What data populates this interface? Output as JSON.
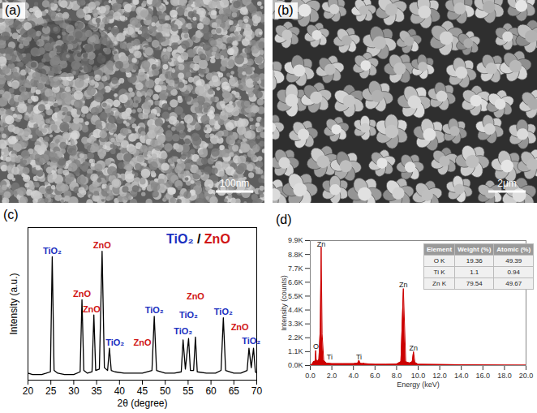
{
  "images": [
    {
      "label": "(a)",
      "scale_bar": "100nm"
    },
    {
      "label": "(b)",
      "scale_bar": "2μm"
    }
  ],
  "chart_data": [
    {
      "label": "(c)",
      "type": "line",
      "title": "TiO₂ / ZnO",
      "x_label": "2θ (degree)",
      "y_label": "Intensity (a.u.)",
      "x": [
        20,
        21,
        22,
        23,
        24,
        24.9,
        25.3,
        25.7,
        26.5,
        28,
        30,
        31.4,
        31.8,
        32.2,
        33,
        34.0,
        34.4,
        34.8,
        35.6,
        36.2,
        36.7,
        37.4,
        37.8,
        38.2,
        39,
        41,
        43,
        45,
        47.1,
        47.6,
        48.1,
        50,
        52,
        53.5,
        53.9,
        54.4,
        55.1,
        55.5,
        56.2,
        56.6,
        57.0,
        59,
        61,
        62.2,
        62.7,
        63.2,
        65,
        66.5,
        67.9,
        68.3,
        68.8,
        69.3,
        69.7,
        70
      ],
      "values": [
        5,
        4,
        4,
        4,
        5,
        6,
        89,
        7,
        5,
        4,
        4,
        6,
        58,
        7,
        5,
        6,
        47,
        7,
        8,
        93,
        9,
        7,
        23,
        7,
        6,
        5,
        5,
        5,
        7,
        46,
        7,
        5,
        5,
        6,
        29,
        8,
        30,
        7,
        7,
        31,
        6,
        5,
        5,
        7,
        45,
        7,
        5,
        5,
        7,
        23,
        9,
        23,
        6,
        5
      ],
      "color": "#000000",
      "xlim": [
        20,
        70
      ],
      "xticks": [
        20,
        25,
        30,
        35,
        40,
        45,
        50,
        55,
        60,
        65,
        70
      ],
      "ylim": [
        0,
        110
      ],
      "tick_labels": "x",
      "annotations": [
        {
          "text": "TiO₂",
          "x": 25.3,
          "y": 91,
          "color": "#1a2fc0"
        },
        {
          "text": "ZnO",
          "x": 31.8,
          "y": 60,
          "color": "#d01515"
        },
        {
          "text": "ZnO",
          "x": 33.9,
          "y": 49,
          "color": "#d01515"
        },
        {
          "text": "ZnO",
          "x": 36.2,
          "y": 95,
          "color": "#d01515"
        },
        {
          "text": "TiO₂",
          "x": 39.0,
          "y": 25,
          "color": "#1a2fc0"
        },
        {
          "text": "ZnO",
          "x": 45.0,
          "y": 25,
          "color": "#d01515"
        },
        {
          "text": "TiO₂",
          "x": 47.6,
          "y": 48,
          "color": "#1a2fc0"
        },
        {
          "text": "TiO₂",
          "x": 53.9,
          "y": 33,
          "color": "#1a2fc0"
        },
        {
          "text": "TiO₂",
          "x": 55.1,
          "y": 45,
          "color": "#1a2fc0"
        },
        {
          "text": "ZnO",
          "x": 56.6,
          "y": 58,
          "color": "#d01515"
        },
        {
          "text": "TiO₂",
          "x": 62.7,
          "y": 47,
          "color": "#1a2fc0"
        },
        {
          "text": "ZnO",
          "x": 66.3,
          "y": 36,
          "color": "#d01515"
        },
        {
          "text": "TiO₂",
          "x": 68.8,
          "y": 26,
          "color": "#1a2fc0"
        }
      ]
    },
    {
      "label": "(d)",
      "type": "area",
      "x_label": "Energy (keV)",
      "y_label": "Intensity (counts)",
      "x": [
        0,
        0.2,
        0.3,
        0.4,
        0.45,
        0.5,
        0.55,
        0.65,
        0.8,
        0.93,
        1.01,
        1.1,
        1.25,
        1.5,
        2,
        3,
        4,
        4.4,
        4.51,
        4.62,
        4.8,
        4.93,
        5.05,
        6,
        7,
        8,
        8.4,
        8.63,
        8.85,
        9.2,
        9.45,
        9.57,
        9.7,
        10,
        12,
        14,
        16,
        18,
        20
      ],
      "values": [
        0,
        150,
        300,
        350,
        300,
        1200,
        500,
        300,
        500,
        3000,
        9400,
        2500,
        400,
        200,
        150,
        150,
        150,
        200,
        420,
        200,
        150,
        180,
        150,
        100,
        100,
        120,
        300,
        6100,
        300,
        200,
        300,
        1100,
        250,
        100,
        80,
        60,
        50,
        40,
        30
      ],
      "color": "#cc0000",
      "xlim": [
        0,
        20
      ],
      "xticks": [
        {
          "value": 0,
          "label": "0.0"
        },
        {
          "value": 2,
          "label": "2.0"
        },
        {
          "value": 4,
          "label": "4.0"
        },
        {
          "value": 6,
          "label": "6.0"
        },
        {
          "value": 8,
          "label": "8.0"
        },
        {
          "value": 10,
          "label": "10.0"
        },
        {
          "value": 12,
          "label": "12.0"
        },
        {
          "value": 14,
          "label": "14.0"
        },
        {
          "value": 16,
          "label": "16.0"
        },
        {
          "value": 18,
          "label": "18.0"
        },
        {
          "value": 20,
          "label": "20.0"
        }
      ],
      "ylim": [
        0,
        9900
      ],
      "yticks": [
        {
          "value": 0,
          "label": "0.0K"
        },
        {
          "value": 1100,
          "label": "1.1K"
        },
        {
          "value": 2200,
          "label": "2.2K"
        },
        {
          "value": 3300,
          "label": "3.3K"
        },
        {
          "value": 4400,
          "label": "4.4K"
        },
        {
          "value": 5500,
          "label": "5.5K"
        },
        {
          "value": 6600,
          "label": "6.6K"
        },
        {
          "value": 7700,
          "label": "7.7K"
        },
        {
          "value": 8800,
          "label": "8.8K"
        },
        {
          "value": 9900,
          "label": "9.9K"
        }
      ],
      "annotations": [
        {
          "text": "O",
          "x": 0.52,
          "y": 1300
        },
        {
          "text": "Ti",
          "x": 1.8,
          "y": 500
        },
        {
          "text": "Zn",
          "x": 1.01,
          "y": 9450
        },
        {
          "text": "Ti",
          "x": 4.51,
          "y": 500
        },
        {
          "text": "Zn",
          "x": 8.63,
          "y": 6200
        },
        {
          "text": "Zn",
          "x": 9.57,
          "y": 1200
        }
      ],
      "table": {
        "header": [
          "Element",
          "Weight (%)",
          "Atomic (%)"
        ],
        "rows": [
          [
            "O K",
            19.36,
            49.39
          ],
          [
            "Ti K",
            1.1,
            0.94
          ],
          [
            "Zn K",
            79.54,
            49.67
          ]
        ]
      }
    }
  ]
}
